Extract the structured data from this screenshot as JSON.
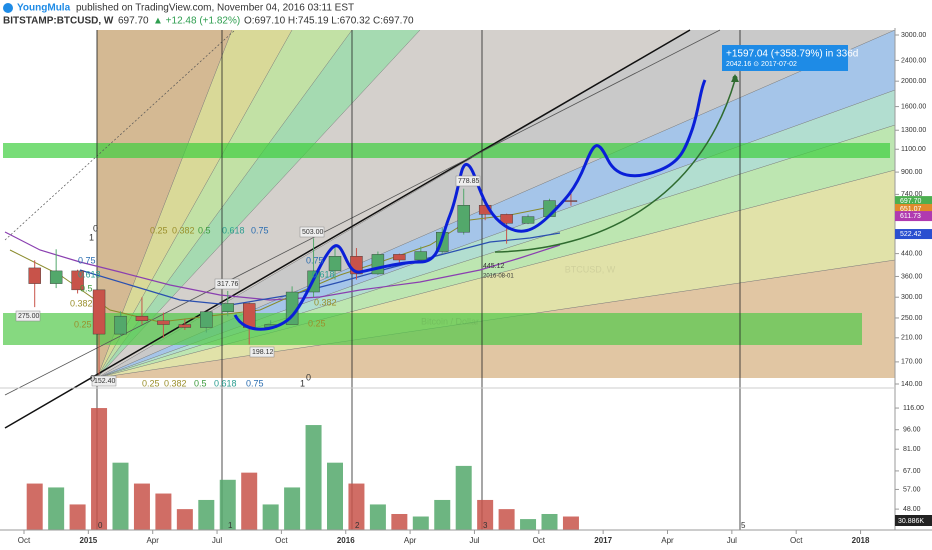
{
  "header": {
    "author": "YoungMula",
    "published": "published on TradingView.com, November 04, 2016 03:11 EST",
    "symbol": "BITSTAMP:BTCUSD, W",
    "last": "697.70",
    "change": "▲ +12.48 (+1.82%)",
    "ohlc": "O:697.10 H:745.19 L:670.32 C:697.70"
  },
  "watermark": {
    "symbol": "BTCUSD, W",
    "name": "Bitcoin / Dollar"
  },
  "chart_data": {
    "type": "candlestick",
    "log_scale": true,
    "grid": false,
    "up_color": "#53a86b",
    "down_color": "#c8534a",
    "x": [
      "2014-10",
      "2014-11",
      "2014-12",
      "2015-01",
      "2015-02",
      "2015-03",
      "2015-04",
      "2015-05",
      "2015-06",
      "2015-07",
      "2015-08",
      "2015-09",
      "2015-10",
      "2015-11",
      "2015-12",
      "2016-01",
      "2016-02",
      "2016-03",
      "2016-04",
      "2016-05",
      "2016-06",
      "2016-07",
      "2016-08",
      "2016-09",
      "2016-10",
      "2016-11"
    ],
    "open": [
      388,
      338,
      378,
      320,
      217,
      254,
      244,
      236,
      230,
      264,
      284,
      230,
      236,
      314,
      378,
      430,
      368,
      437,
      416,
      448,
      531,
      673,
      621,
      574,
      609,
      701
    ],
    "high": [
      415,
      457,
      382,
      320,
      265,
      300,
      262,
      248,
      265,
      317,
      286,
      245,
      330,
      503,
      468,
      462,
      448,
      440,
      468,
      550,
      778,
      685,
      625,
      620,
      712,
      745
    ],
    "low": [
      275,
      325,
      310,
      152,
      212,
      236,
      210,
      225,
      220,
      254,
      198,
      226,
      236,
      300,
      350,
      350,
      365,
      398,
      414,
      440,
      520,
      590,
      480,
      570,
      605,
      670
    ],
    "close": [
      338,
      378,
      320,
      217,
      254,
      244,
      236,
      230,
      264,
      284,
      230,
      236,
      314,
      378,
      430,
      368,
      437,
      416,
      448,
      531,
      673,
      621,
      574,
      609,
      701,
      698
    ],
    "volume": [
      60,
      58,
      50,
      116,
      72,
      60,
      55,
      48,
      52,
      62,
      66,
      50,
      58,
      100,
      72,
      60,
      50,
      46,
      45,
      52,
      70,
      52,
      48,
      44,
      46,
      45
    ],
    "ylim": [
      140,
      3000
    ],
    "yticks": [
      {
        "value": 3000,
        "label": "3000.00"
      },
      {
        "value": 2400,
        "label": "2400.00"
      },
      {
        "value": 2000,
        "label": "2000.00"
      },
      {
        "value": 1600,
        "label": "1600.00"
      },
      {
        "value": 1300,
        "label": "1300.00"
      },
      {
        "value": 1100,
        "label": "1100.00"
      },
      {
        "value": 900,
        "label": "900.00"
      },
      {
        "value": 740,
        "label": "740.00"
      },
      {
        "value": 440,
        "label": "440.00"
      },
      {
        "value": 360,
        "label": "360.00"
      },
      {
        "value": 300,
        "label": "300.00"
      },
      {
        "value": 250,
        "label": "250.00"
      },
      {
        "value": 210,
        "label": "210.00"
      },
      {
        "value": 170,
        "label": "170.00"
      },
      {
        "value": 140,
        "label": "140.00"
      }
    ],
    "price_labels": [
      {
        "value": 697.7,
        "label": "697.70",
        "color": "#4caf50"
      },
      {
        "value": 651.07,
        "label": "651.07",
        "color": "#e08a2b"
      },
      {
        "value": 611.73,
        "label": "611.73",
        "color": "#b03ab0"
      },
      {
        "value": 522.42,
        "label": "522.42",
        "color": "#2a4fd0"
      }
    ],
    "volume_ylim": [
      40,
      130
    ],
    "volume_ticks": [
      {
        "value": 116,
        "label": "116.00"
      },
      {
        "value": 96,
        "label": "96.00"
      },
      {
        "value": 81,
        "label": "81.00"
      },
      {
        "value": 67,
        "label": "67.00"
      },
      {
        "value": 57,
        "label": "57.00"
      },
      {
        "value": 48,
        "label": "48.00"
      }
    ],
    "volume_last_label": "30.886K",
    "xticks": [
      {
        "value": "2014-10",
        "label": "Oct"
      },
      {
        "value": "2015-01",
        "label": "2015"
      },
      {
        "value": "2015-04",
        "label": "Apr"
      },
      {
        "value": "2015-07",
        "label": "Jul"
      },
      {
        "value": "2015-10",
        "label": "Oct"
      },
      {
        "value": "2016-01",
        "label": "2016"
      },
      {
        "value": "2016-04",
        "label": "Apr"
      },
      {
        "value": "2016-07",
        "label": "Jul"
      },
      {
        "value": "2016-10",
        "label": "Oct"
      },
      {
        "value": "2017-01",
        "label": "2017"
      },
      {
        "value": "2017-04",
        "label": "Apr"
      },
      {
        "value": "2017-07",
        "label": "Jul"
      },
      {
        "value": "2017-10",
        "label": "Oct"
      },
      {
        "value": "2018-01",
        "label": "2018"
      }
    ]
  },
  "annotations": {
    "measure_1": "+1597.04 (+358.79%) in 336d",
    "measure_2": "2042.16  ⊙ 2017-07-02",
    "tags": [
      "778.85",
      "503.00",
      "317.76",
      "275.00",
      "198.12",
      "152.40",
      "445.12",
      "2016-08-01"
    ],
    "fib_labels": [
      "0.25",
      "0.382",
      "0.5",
      "0.618",
      "0.75",
      "1",
      "0",
      "0.75",
      "0.618",
      "0.5",
      "0.382",
      "0.25",
      "0",
      "0.25",
      "0.382",
      "0.5",
      "0.618",
      "0.75",
      "1",
      "0",
      "0.75",
      "0.618",
      "0.382",
      "0.25"
    ],
    "cycle_labels": [
      "0",
      "1",
      "2",
      "3",
      "5"
    ]
  }
}
